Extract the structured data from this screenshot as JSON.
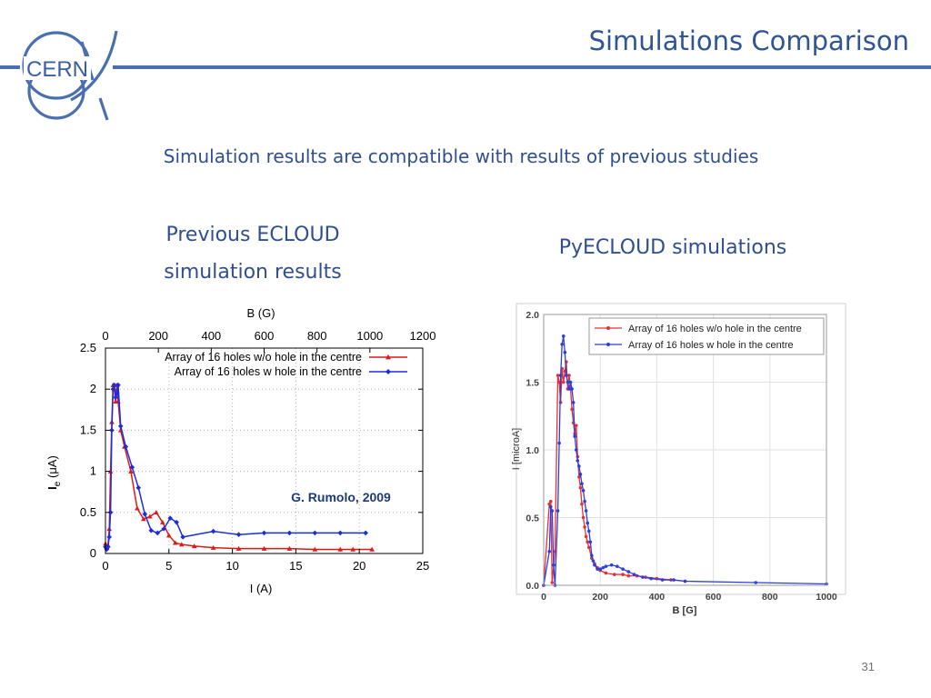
{
  "slide": {
    "title": "Simulations Comparison",
    "subtitle": "Simulation results are compatible with results of previous studies",
    "left_heading_line1": "Previous ECLOUD",
    "left_heading_line2": "simulation results",
    "right_heading": "PyECLOUD simulations",
    "page_number": "31",
    "logo_text": "CERN",
    "accent_color": "#4a6fb1"
  },
  "chart_data": [
    {
      "type": "line",
      "title": "",
      "xlabel": "I (A)",
      "ylabel": "I_e (μA)",
      "ylabel_main": "I",
      "ylabel_sub": "e",
      "ylabel_unit": " (μA)",
      "x2label": "B (G)",
      "xlim": [
        0,
        25
      ],
      "ylim": [
        0,
        2.5
      ],
      "x2lim": [
        0,
        1200
      ],
      "xticks": [
        0,
        5,
        10,
        15,
        20,
        25
      ],
      "yticks": [
        0,
        0.5,
        1,
        1.5,
        2,
        2.5
      ],
      "x2ticks": [
        0,
        200,
        400,
        600,
        800,
        1000,
        1200
      ],
      "grid": true,
      "legend_position": "top-right",
      "annotation": "G. Rumolo, 2009",
      "series": [
        {
          "name": "Array of 16 holes w/o hole in the centre",
          "color": "#e01818",
          "marker": "triangle",
          "x": [
            0,
            0.1,
            0.2,
            0.3,
            0.4,
            0.5,
            0.6,
            0.7,
            0.8,
            0.9,
            1.0,
            1.2,
            1.5,
            2.0,
            2.5,
            3.0,
            3.5,
            4.0,
            4.5,
            5.0,
            5.5,
            6.0,
            7.0,
            8.5,
            10.5,
            12.5,
            14.5,
            16.5,
            18.5,
            19.5,
            21.0
          ],
          "y": [
            0.12,
            0.08,
            0.1,
            0.3,
            1.0,
            1.6,
            2.05,
            2.0,
            1.85,
            2.05,
            1.85,
            1.5,
            1.3,
            1.0,
            0.55,
            0.42,
            0.45,
            0.5,
            0.38,
            0.22,
            0.13,
            0.11,
            0.09,
            0.07,
            0.06,
            0.06,
            0.06,
            0.05,
            0.05,
            0.05,
            0.05
          ]
        },
        {
          "name": "Array of 16 holes w hole in the centre",
          "color": "#1a2ee0",
          "marker": "diamond",
          "x": [
            0,
            0.1,
            0.2,
            0.3,
            0.4,
            0.5,
            0.6,
            0.7,
            0.8,
            0.9,
            1.0,
            1.2,
            1.6,
            2.1,
            2.6,
            3.1,
            3.6,
            4.1,
            4.6,
            5.1,
            5.6,
            6.1,
            8.5,
            10.5,
            12.5,
            14.5,
            16.5,
            18.5,
            20.5
          ],
          "y": [
            0.08,
            0.05,
            0.08,
            0.2,
            0.5,
            1.5,
            2.0,
            2.05,
            1.9,
            1.95,
            2.05,
            1.55,
            1.3,
            1.05,
            0.8,
            0.48,
            0.28,
            0.25,
            0.3,
            0.43,
            0.38,
            0.2,
            0.27,
            0.23,
            0.25,
            0.25,
            0.25,
            0.25,
            0.25
          ]
        }
      ]
    },
    {
      "type": "line",
      "title": "",
      "xlabel": "B [G]",
      "ylabel": "I [microA]",
      "xlim": [
        0,
        1000
      ],
      "ylim": [
        0,
        2.0
      ],
      "xticks": [
        0,
        200,
        400,
        600,
        800,
        1000
      ],
      "yticks": [
        0.0,
        0.5,
        1.0,
        1.5,
        2.0
      ],
      "xtick_labels": [
        "0",
        "200",
        "400",
        "600",
        "800",
        "1000"
      ],
      "ytick_labels": [
        "0.0",
        "0.5",
        "1.0",
        "1.5",
        "2.0"
      ],
      "grid": true,
      "legend_position": "top-right",
      "series": [
        {
          "name": "Array of 16 holes w/o hole in the centre",
          "color": "#e83030",
          "marker": "dot",
          "x": [
            0,
            20,
            25,
            30,
            40,
            50,
            55,
            60,
            65,
            70,
            75,
            80,
            85,
            90,
            95,
            100,
            105,
            110,
            115,
            120,
            125,
            130,
            135,
            140,
            145,
            150,
            155,
            160,
            170,
            180,
            190,
            200,
            220,
            250,
            280,
            300,
            330,
            360,
            400,
            450,
            500
          ],
          "y": [
            0,
            0.6,
            0.62,
            0.02,
            0.25,
            1.55,
            1.5,
            1.35,
            1.6,
            1.5,
            1.58,
            1.65,
            1.45,
            1.55,
            1.45,
            1.3,
            1.2,
            1.12,
            1.18,
            0.95,
            0.8,
            0.72,
            0.6,
            0.5,
            0.43,
            0.36,
            0.32,
            0.28,
            0.2,
            0.16,
            0.13,
            0.11,
            0.09,
            0.08,
            0.08,
            0.07,
            0.07,
            0.06,
            0.05,
            0.04,
            0.03
          ]
        },
        {
          "name": "Array of 16 holes w hole in the centre",
          "color": "#2a3fe0",
          "marker": "dot",
          "x": [
            0,
            20,
            25,
            30,
            35,
            40,
            50,
            55,
            60,
            65,
            70,
            75,
            80,
            85,
            90,
            95,
            100,
            105,
            110,
            115,
            120,
            125,
            130,
            135,
            140,
            145,
            150,
            155,
            160,
            165,
            170,
            175,
            180,
            190,
            200,
            210,
            220,
            240,
            260,
            280,
            300,
            320,
            350,
            380,
            420,
            460,
            500,
            750,
            1000
          ],
          "y": [
            0,
            0.25,
            0.58,
            0.55,
            0.15,
            0.0,
            0.55,
            1.05,
            1.55,
            1.78,
            1.84,
            1.72,
            1.55,
            1.5,
            1.45,
            1.5,
            1.45,
            1.35,
            1.1,
            1.0,
            0.92,
            0.88,
            0.82,
            0.75,
            0.7,
            0.62,
            0.55,
            0.46,
            0.4,
            0.32,
            0.22,
            0.18,
            0.15,
            0.12,
            0.12,
            0.13,
            0.14,
            0.15,
            0.14,
            0.12,
            0.1,
            0.08,
            0.06,
            0.05,
            0.04,
            0.04,
            0.03,
            0.02,
            0.01
          ]
        }
      ]
    }
  ]
}
